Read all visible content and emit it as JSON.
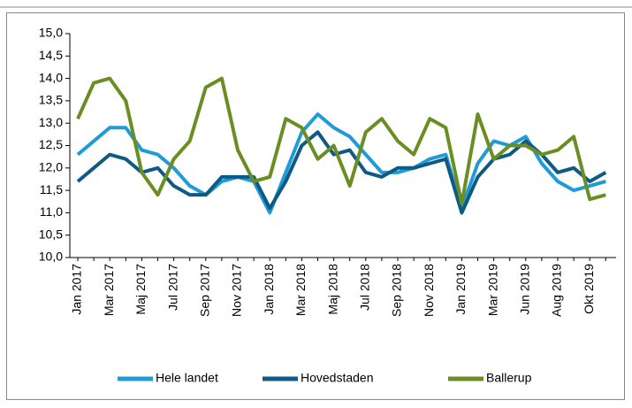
{
  "chart_data": {
    "type": "line",
    "categories": [
      "Jan 2017",
      null,
      "Mar 2017",
      null,
      "Maj 2017",
      null,
      "Jul 2017",
      null,
      "Sep 2017",
      null,
      "Nov 2017",
      null,
      "Jan 2018",
      null,
      "Mar 2018",
      null,
      "Maj 2018",
      null,
      "Jul 2018",
      null,
      "Sep 2018",
      null,
      "Nov 2018",
      null,
      "Jan 2019",
      null,
      "Mar 2019",
      null,
      "Jun 2019",
      null,
      "Aug 2019",
      null,
      "Okt 2019",
      null
    ],
    "series": [
      {
        "name": "Hele landet",
        "color": "#1f9bd7",
        "values": [
          12.3,
          12.6,
          12.9,
          12.9,
          12.4,
          12.3,
          12.0,
          11.6,
          11.4,
          11.7,
          11.8,
          11.7,
          11.0,
          11.9,
          12.8,
          13.2,
          12.9,
          12.7,
          12.3,
          11.9,
          11.9,
          12.0,
          12.2,
          12.3,
          11.1,
          12.1,
          12.6,
          12.5,
          12.7,
          12.1,
          11.7,
          11.5,
          11.6,
          11.7
        ]
      },
      {
        "name": "Hovedstaden",
        "color": "#0f5a85",
        "values": [
          11.7,
          12.0,
          12.3,
          12.2,
          11.9,
          12.0,
          11.6,
          11.4,
          11.4,
          11.8,
          11.8,
          11.8,
          11.1,
          11.7,
          12.5,
          12.8,
          12.3,
          12.4,
          11.9,
          11.8,
          12.0,
          12.0,
          12.1,
          12.2,
          11.0,
          11.8,
          12.2,
          12.3,
          12.6,
          12.3,
          11.9,
          12.0,
          11.7,
          11.9
        ]
      },
      {
        "name": "Ballerup",
        "color": "#6b8e23",
        "values": [
          13.1,
          13.9,
          14.0,
          13.5,
          11.9,
          11.4,
          12.2,
          12.6,
          13.8,
          14.0,
          12.4,
          11.7,
          11.8,
          13.1,
          12.9,
          12.2,
          12.5,
          11.6,
          12.8,
          13.1,
          12.6,
          12.3,
          13.1,
          12.9,
          11.2,
          13.2,
          12.2,
          12.5,
          12.5,
          12.3,
          12.4,
          12.7,
          11.3,
          11.4
        ]
      }
    ],
    "ylim": [
      10,
      15
    ],
    "yticks": [
      {
        "value": 10,
        "label": "10,0"
      },
      {
        "value": 10.5,
        "label": "10,5"
      },
      {
        "value": 11,
        "label": "11,0"
      },
      {
        "value": 11.5,
        "label": "11,5"
      },
      {
        "value": 12,
        "label": "12,0"
      },
      {
        "value": 12.5,
        "label": "12,5"
      },
      {
        "value": 13,
        "label": "13,0"
      },
      {
        "value": 13.5,
        "label": "13,5"
      },
      {
        "value": 14,
        "label": "14,0"
      },
      {
        "value": 14.5,
        "label": "14,5"
      },
      {
        "value": 15,
        "label": "15,0"
      }
    ],
    "grid": false,
    "legend": "bottom"
  }
}
